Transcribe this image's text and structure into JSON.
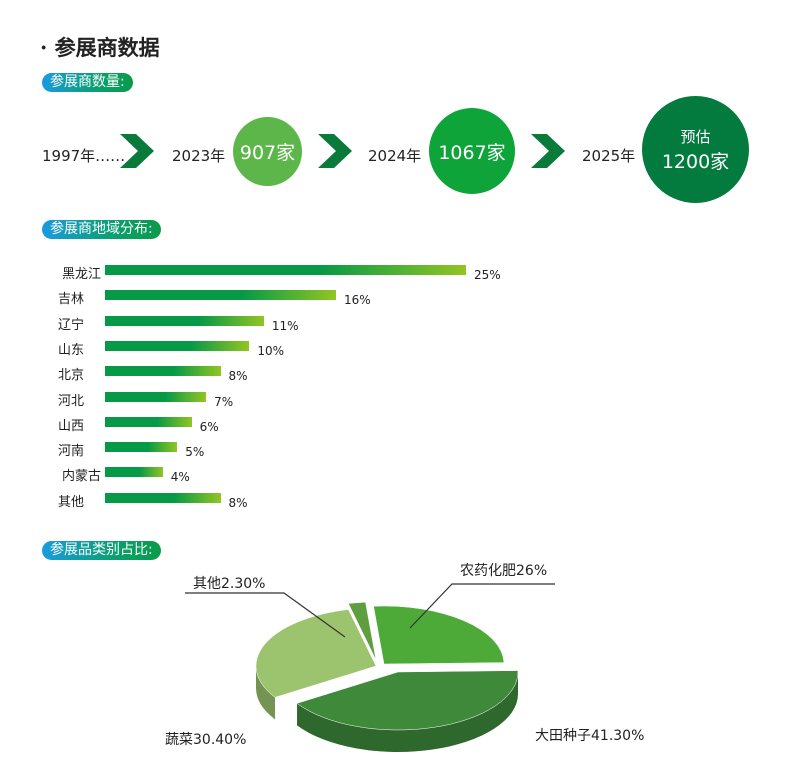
{
  "title": "参展商数据",
  "sections": {
    "count": "参展商数量:",
    "region": "参展商地域分布:",
    "category": "参展品类别占比:"
  },
  "timeline": [
    {
      "year": "1997年……"
    },
    {
      "year": "2023年",
      "value": "907家",
      "color": "#5db64a"
    },
    {
      "year": "2024年",
      "value": "1067家",
      "color": "#0ea43a"
    },
    {
      "year": "2025年",
      "prefix": "预估",
      "value": "1200家",
      "color": "#037a3e"
    }
  ],
  "colors": {
    "arrow": "#0a7a3a",
    "bar_start": "#079a46",
    "bar_end": "#92c522"
  },
  "chart_data": [
    {
      "type": "bar",
      "orientation": "horizontal",
      "categories": [
        "黑龙江",
        "吉林",
        "辽宁",
        "山东",
        "北京",
        "河北",
        "山西",
        "河南",
        "内蒙古",
        "其他"
      ],
      "values": [
        25,
        16,
        11,
        10,
        8,
        7,
        6,
        5,
        4,
        8
      ],
      "labels": [
        "25%",
        "16%",
        "11%",
        "10%",
        "8%",
        "7%",
        "6%",
        "5%",
        "4%",
        "8%"
      ],
      "unit": "%"
    },
    {
      "type": "pie",
      "style": "3d-exploded",
      "slices": [
        {
          "label": "农药化肥26%",
          "value": 26,
          "color": "#4eaa38"
        },
        {
          "label": "大田种子41.30%",
          "value": 41.3,
          "color": "#3f8a3a"
        },
        {
          "label": "蔬菜30.40%",
          "value": 30.4,
          "color": "#9cc46e"
        },
        {
          "label": "其他2.30%",
          "value": 2.3,
          "color": "#5f9e3e"
        }
      ]
    }
  ]
}
